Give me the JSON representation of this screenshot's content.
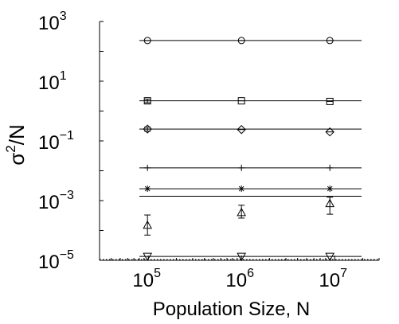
{
  "chart_data": {
    "type": "scatter",
    "xlabel": "Population Size, N",
    "ylabel_base": "σ",
    "ylabel_sup": "2",
    "ylabel_tail": "/N",
    "x_scale": "log",
    "y_scale": "log",
    "xlim": [
      30000,
      30000000
    ],
    "ylim": [
      1e-05,
      1000
    ],
    "x_ticks": [
      {
        "value": 100000,
        "base": "10",
        "exp": "5"
      },
      {
        "value": 1000000,
        "base": "10",
        "exp": "6"
      },
      {
        "value": 10000000,
        "base": "10",
        "exp": "7"
      }
    ],
    "y_ticks": [
      {
        "value": 1e-05,
        "base": "10",
        "exp": "−5"
      },
      {
        "value": 0.001,
        "base": "10",
        "exp": "−3"
      },
      {
        "value": 0.1,
        "base": "10",
        "exp": "−1"
      },
      {
        "value": 10,
        "base": "10",
        "exp": "1"
      },
      {
        "value": 1000,
        "base": "10",
        "exp": "3"
      }
    ],
    "reference_lines": [
      {
        "y": 230
      },
      {
        "y": 2.2
      },
      {
        "y": 0.25
      },
      {
        "y": 0.0125
      },
      {
        "y": 0.0025
      },
      {
        "y": 0.0014
      },
      {
        "y": 1.35e-05
      },
      {
        "y": 1e-05
      }
    ],
    "series": [
      {
        "marker": "circle-cross",
        "x": [
          100000,
          1000000,
          10000000
        ],
        "y": [
          230,
          230,
          230
        ],
        "err": [
          0,
          0,
          0
        ]
      },
      {
        "marker": "square",
        "x": [
          100000,
          1000000,
          10000000
        ],
        "y": [
          2.2,
          2.2,
          2.1
        ],
        "err": [
          0.3,
          0,
          0
        ]
      },
      {
        "marker": "diamond",
        "x": [
          100000,
          1000000,
          10000000
        ],
        "y": [
          0.25,
          0.24,
          0.2
        ],
        "err": [
          0.04,
          0,
          0
        ]
      },
      {
        "marker": "plus",
        "x": [
          100000,
          1000000,
          10000000
        ],
        "y": [
          0.0125,
          0.0125,
          0.0125
        ],
        "err": [
          0,
          0,
          0
        ]
      },
      {
        "marker": "asterisk",
        "x": [
          100000,
          1000000,
          10000000
        ],
        "y": [
          0.0025,
          0.0025,
          0.0025
        ],
        "err": [
          0,
          0,
          0
        ]
      },
      {
        "marker": "triangle-up",
        "x": [
          100000,
          1000000,
          10000000
        ],
        "y": [
          0.00015,
          0.0004,
          0.0008
        ],
        "err_low": [
          7e-05,
          0.00026,
          0.00035
        ],
        "err_high": [
          0.00033,
          0.0007,
          0.0013
        ]
      },
      {
        "marker": "triangle-down",
        "x": [
          100000,
          1000000,
          10000000
        ],
        "y": [
          1.35e-05,
          1.35e-05,
          1.35e-05
        ],
        "err": [
          0,
          0,
          0
        ]
      }
    ],
    "grid": false,
    "legend": "none"
  }
}
